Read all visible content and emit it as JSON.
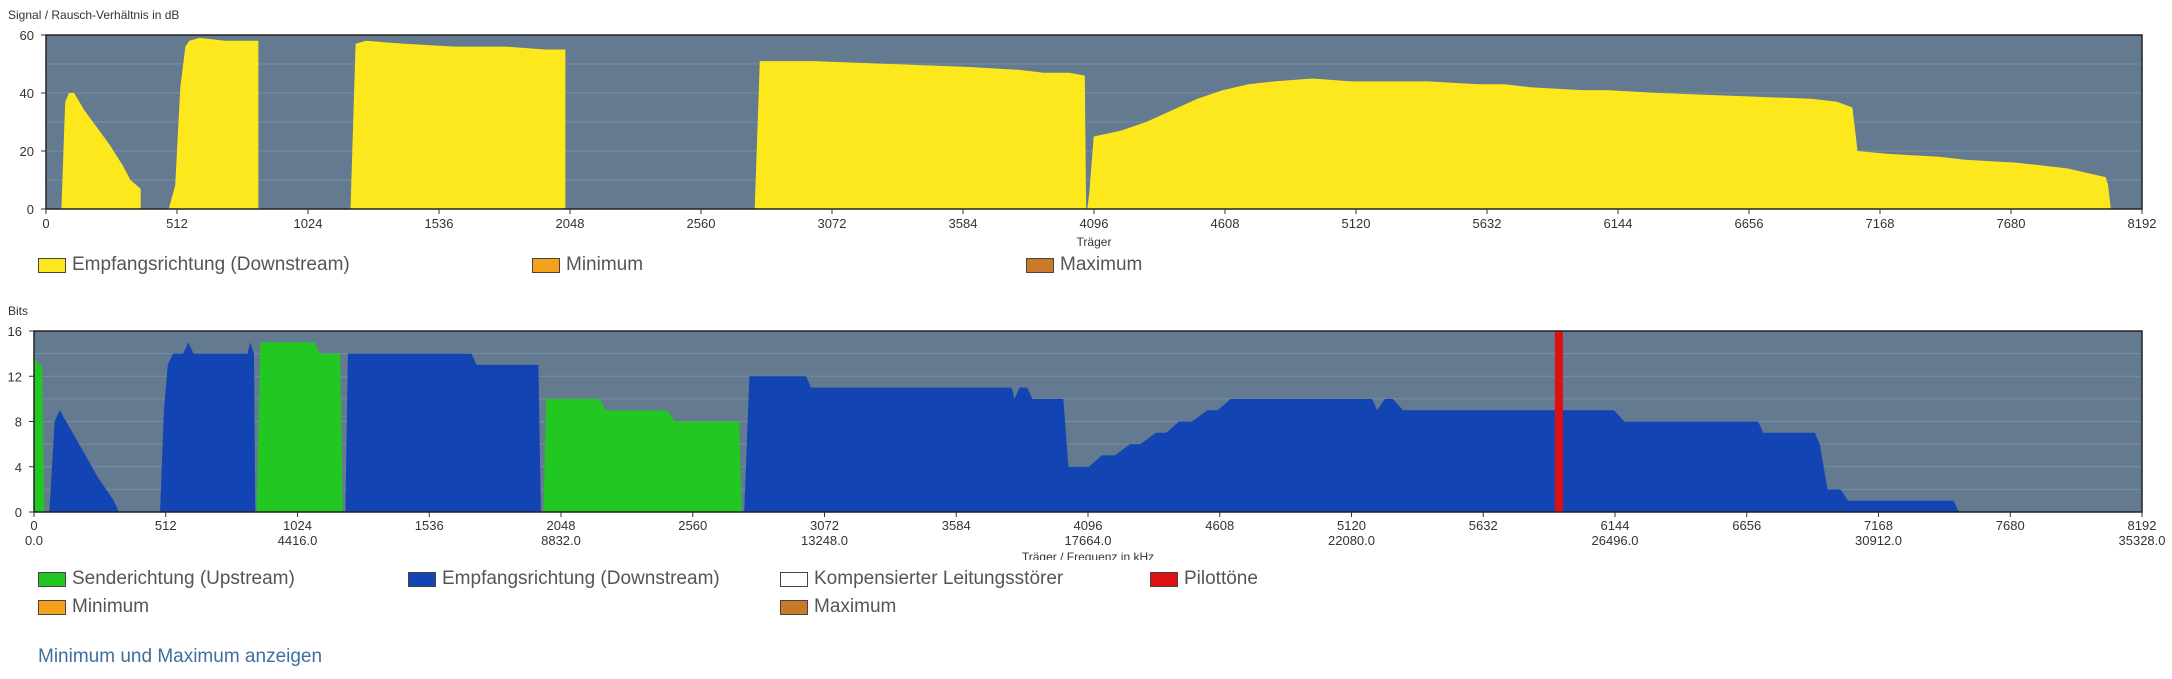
{
  "colors": {
    "plot_bg": "#637a90",
    "snr_fill": "#fde81e",
    "upstream": "#22c722",
    "downstream": "#1344b4",
    "pilot": "#e01010",
    "compensated": "#ffffff",
    "minimum": "#f5a11c",
    "maximum": "#c97a28",
    "link": "#3f6f9c"
  },
  "snr_legend": [
    {
      "label": "Empfangsrichtung (Downstream)",
      "color": "#fde81e"
    },
    {
      "label": "Minimum",
      "color": "#f5a11c"
    },
    {
      "label": "Maximum",
      "color": "#c97a28"
    }
  ],
  "bits_legend": [
    {
      "label": "Senderichtung (Upstream)",
      "color": "#22c722"
    },
    {
      "label": "Empfangsrichtung (Downstream)",
      "color": "#1344b4"
    },
    {
      "label": "Kompensierter Leitungsstörer",
      "color": "#ffffff"
    },
    {
      "label": "Pilottöne",
      "color": "#e01010"
    },
    {
      "label": "Minimum",
      "color": "#f5a11c"
    },
    {
      "label": "Maximum",
      "color": "#c97a28"
    }
  ],
  "toggle_link": "Minimum und Maximum anzeigen",
  "chart_data": [
    {
      "type": "area",
      "title": "Signal / Rausch-Verhältnis in dB",
      "xlabel": "Träger",
      "ylabel": "",
      "xlim": [
        0,
        8192
      ],
      "ylim": [
        0,
        60
      ],
      "x_ticks": [
        0,
        512,
        1024,
        1536,
        2048,
        2560,
        3072,
        3584,
        4096,
        4608,
        5120,
        5632,
        6144,
        6656,
        7168,
        7680,
        8192
      ],
      "y_ticks": [
        0,
        20,
        40,
        60
      ],
      "grid": true,
      "series": [
        {
          "name": "Empfangsrichtung (Downstream)",
          "color": "#fde81e",
          "segments": [
            [
              [
                60,
                0
              ],
              [
                75,
                37
              ],
              [
                90,
                40
              ],
              [
                110,
                40
              ],
              [
                150,
                34
              ],
              [
                200,
                28
              ],
              [
                250,
                22
              ],
              [
                300,
                15
              ],
              [
                330,
                10
              ],
              [
                370,
                7
              ],
              [
                370,
                0
              ]
            ],
            [
              [
                480,
                0
              ],
              [
                495,
                5
              ],
              [
                505,
                8
              ],
              [
                525,
                42
              ],
              [
                545,
                56
              ],
              [
                560,
                58
              ],
              [
                600,
                59
              ],
              [
                700,
                58
              ],
              [
                780,
                58
              ],
              [
                830,
                58
              ],
              [
                830,
                0
              ]
            ],
            [
              [
                1190,
                0
              ],
              [
                1210,
                57
              ],
              [
                1250,
                58
              ],
              [
                1400,
                57
              ],
              [
                1600,
                56
              ],
              [
                1800,
                56
              ],
              [
                1950,
                55
              ],
              [
                2020,
                55
              ],
              [
                2030,
                55
              ],
              [
                2030,
                0
              ]
            ],
            [
              [
                2770,
                0
              ],
              [
                2790,
                51
              ],
              [
                3000,
                51
              ],
              [
                3300,
                50
              ],
              [
                3600,
                49
              ],
              [
                3800,
                48
              ],
              [
                3900,
                47
              ],
              [
                4000,
                47
              ],
              [
                4060,
                46
              ],
              [
                4065,
                0
              ]
            ],
            [
              [
                4070,
                0
              ],
              [
                4078,
                6
              ],
              [
                4095,
                25
              ],
              [
                4200,
                27
              ],
              [
                4300,
                30
              ],
              [
                4400,
                34
              ],
              [
                4500,
                38
              ],
              [
                4600,
                41
              ],
              [
                4700,
                43
              ],
              [
                4800,
                44
              ],
              [
                4950,
                45
              ],
              [
                5100,
                44
              ],
              [
                5400,
                44
              ],
              [
                5600,
                43
              ],
              [
                5700,
                43
              ],
              [
                5800,
                42
              ],
              [
                6000,
                41
              ],
              [
                6100,
                41
              ],
              [
                6300,
                40
              ],
              [
                6600,
                39
              ],
              [
                6900,
                38
              ],
              [
                7000,
                37
              ],
              [
                7060,
                35
              ],
              [
                7080,
                20
              ],
              [
                7200,
                19
              ],
              [
                7400,
                18
              ],
              [
                7500,
                17
              ],
              [
                7700,
                16
              ],
              [
                7900,
                14
              ],
              [
                8000,
                12
              ],
              [
                8050,
                11
              ],
              [
                8060,
                8
              ],
              [
                8070,
                0
              ]
            ]
          ]
        }
      ]
    },
    {
      "type": "area",
      "title": "Bits",
      "xlabel": "Träger / Frequenz in kHz",
      "ylabel": "",
      "xlim": [
        0,
        8192
      ],
      "ylim": [
        0,
        16
      ],
      "x_ticks": [
        0,
        512,
        1024,
        1536,
        2048,
        2560,
        3072,
        3584,
        4096,
        4608,
        5120,
        5632,
        6144,
        6656,
        7168,
        7680,
        8192
      ],
      "x_freq_labels": [
        {
          "at": 0,
          "label": "0.0"
        },
        {
          "at": 1024,
          "label": "4416.0"
        },
        {
          "at": 2048,
          "label": "8832.0"
        },
        {
          "at": 3072,
          "label": "13248.0"
        },
        {
          "at": 4096,
          "label": "17664.0"
        },
        {
          "at": 5120,
          "label": "22080.0"
        },
        {
          "at": 6144,
          "label": "26496.0"
        },
        {
          "at": 7168,
          "label": "30912.0"
        },
        {
          "at": 8192,
          "label": "35328.0"
        }
      ],
      "y_ticks": [
        0,
        4,
        8,
        12,
        16
      ],
      "grid": true,
      "series": [
        {
          "name": "Senderichtung (Upstream)",
          "color": "#22c722",
          "segments": [
            [
              [
                0,
                0
              ],
              [
                0,
                14
              ],
              [
                15,
                13
              ],
              [
                32,
                13
              ],
              [
                40,
                0
              ]
            ],
            [
              [
                865,
                0
              ],
              [
                880,
                15
              ],
              [
                1090,
                15
              ],
              [
                1110,
                14
              ],
              [
                1190,
                14
              ],
              [
                1200,
                0
              ]
            ],
            [
              [
                1980,
                0
              ],
              [
                1990,
                10
              ],
              [
                2200,
                10
              ],
              [
                2220,
                9
              ],
              [
                2460,
                9
              ],
              [
                2490,
                8
              ],
              [
                2740,
                8
              ],
              [
                2750,
                0
              ]
            ]
          ]
        },
        {
          "name": "Empfangsrichtung (Downstream)",
          "color": "#1344b4",
          "segments": [
            [
              [
                60,
                0
              ],
              [
                80,
                8
              ],
              [
                100,
                9
              ],
              [
                150,
                7
              ],
              [
                200,
                5
              ],
              [
                250,
                3
              ],
              [
                280,
                2
              ],
              [
                310,
                1
              ],
              [
                330,
                0
              ]
            ],
            [
              [
                490,
                0
              ],
              [
                505,
                9
              ],
              [
                520,
                13
              ],
              [
                540,
                14
              ],
              [
                580,
                14
              ],
              [
                600,
                15
              ],
              [
                620,
                14
              ],
              [
                830,
                14
              ],
              [
                840,
                15
              ],
              [
                855,
                14
              ],
              [
                860,
                0
              ]
            ],
            [
              [
                1210,
                0
              ],
              [
                1220,
                14
              ],
              [
                1700,
                14
              ],
              [
                1720,
                13
              ],
              [
                1960,
                13
              ],
              [
                1970,
                0
              ]
            ],
            [
              [
                2760,
                0
              ],
              [
                2780,
                12
              ],
              [
                3000,
                12
              ],
              [
                3020,
                11
              ],
              [
                3800,
                11
              ],
              [
                3810,
                10
              ],
              [
                3830,
                11
              ],
              [
                3860,
                11
              ],
              [
                3880,
                10
              ],
              [
                4000,
                10
              ],
              [
                4020,
                4
              ],
              [
                4100,
                4
              ],
              [
                4150,
                5
              ],
              [
                4200,
                5
              ],
              [
                4260,
                6
              ],
              [
                4300,
                6
              ],
              [
                4360,
                7
              ],
              [
                4400,
                7
              ],
              [
                4450,
                8
              ],
              [
                4500,
                8
              ],
              [
                4560,
                9
              ],
              [
                4600,
                9
              ],
              [
                4650,
                10
              ],
              [
                5200,
                10
              ],
              [
                5220,
                9
              ],
              [
                5250,
                10
              ],
              [
                5280,
                10
              ],
              [
                5320,
                9
              ],
              [
                6140,
                9
              ],
              [
                6180,
                8
              ],
              [
                6700,
                8
              ],
              [
                6720,
                7
              ],
              [
                6920,
                7
              ],
              [
                6940,
                6
              ],
              [
                6970,
                2
              ],
              [
                7020,
                2
              ],
              [
                7050,
                1
              ],
              [
                7460,
                1
              ],
              [
                7480,
                0
              ]
            ]
          ]
        },
        {
          "name": "Pilottöne",
          "color": "#e01010",
          "pilot_carriers": [
            5926
          ]
        }
      ]
    }
  ]
}
